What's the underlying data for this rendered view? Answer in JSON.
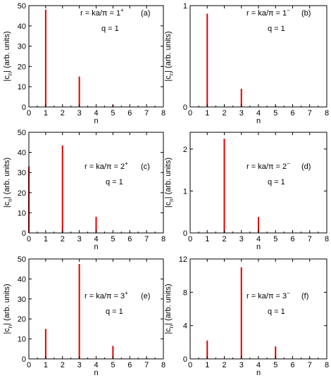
{
  "chart_data": [
    {
      "panel": "(a)",
      "type": "bar",
      "color": "#dd0000",
      "annotation": {
        "r": "r = ka/π = 1",
        "sup": "+",
        "q": "q = 1"
      },
      "xlabel": "n",
      "ylabel": "|c",
      "ylabel_sub": "n",
      "ylabel_tail": "| (arb. units)",
      "xlim": [
        0,
        8
      ],
      "ylim": [
        0,
        50
      ],
      "xticks": [
        "0",
        "1",
        "2",
        "3",
        "4",
        "5",
        "6",
        "7",
        "8"
      ],
      "yticks": [
        "0",
        "10",
        "20",
        "30",
        "40",
        "50"
      ],
      "x": [
        1,
        3,
        5,
        7
      ],
      "values": [
        48,
        15,
        1,
        0.2
      ]
    },
    {
      "panel": "(b)",
      "type": "bar",
      "color": "#dd0000",
      "annotation": {
        "r": "r = ka/π = 1",
        "sup": "−",
        "q": "q = 1"
      },
      "xlabel": "n",
      "ylabel": "|c",
      "ylabel_sub": "n",
      "ylabel_tail": "| (arb. units)",
      "xlim": [
        0,
        8
      ],
      "ylim": [
        0,
        1
      ],
      "xticks": [
        "0",
        "1",
        "2",
        "3",
        "4",
        "5",
        "6",
        "7",
        "8"
      ],
      "yticks": [
        "0",
        "1"
      ],
      "x": [
        1,
        3,
        5
      ],
      "values": [
        0.92,
        0.18,
        0.01
      ]
    },
    {
      "panel": "(c)",
      "type": "bar",
      "color": "#dd0000",
      "annotation": {
        "r": "r = ka/π = 2",
        "sup": "+",
        "q": "q = 1"
      },
      "xlabel": "n",
      "ylabel": "|c",
      "ylabel_sub": "n",
      "ylabel_tail": "| (arb. units)",
      "xlim": [
        0,
        8
      ],
      "ylim": [
        0,
        50
      ],
      "xticks": [
        "0",
        "1",
        "2",
        "3",
        "4",
        "5",
        "6",
        "7",
        "8"
      ],
      "yticks": [
        "0",
        "10",
        "20",
        "30",
        "40",
        "50"
      ],
      "x": [
        0,
        2,
        4,
        6
      ],
      "values": [
        33,
        43.5,
        8,
        0.3
      ]
    },
    {
      "panel": "(d)",
      "type": "bar",
      "color": "#dd0000",
      "annotation": {
        "r": "r = ka/π = 2",
        "sup": "−",
        "q": "q = 1"
      },
      "xlabel": "n",
      "ylabel": "|c",
      "ylabel_sub": "n",
      "ylabel_tail": "| (arb. units)",
      "xlim": [
        0,
        8
      ],
      "ylim": [
        0,
        2.4
      ],
      "xticks": [
        "0",
        "1",
        "2",
        "3",
        "4",
        "5",
        "6",
        "7",
        "8"
      ],
      "yticks": [
        "0",
        "1",
        "2"
      ],
      "x": [
        2,
        4
      ],
      "values": [
        2.25,
        0.38
      ]
    },
    {
      "panel": "(e)",
      "type": "bar",
      "color": "#dd0000",
      "annotation": {
        "r": "r = ka/π = 3",
        "sup": "+",
        "q": "q = 1"
      },
      "xlabel": "n",
      "ylabel": "|c",
      "ylabel_sub": "n",
      "ylabel_tail": "| (arb. units)",
      "xlim": [
        0,
        8
      ],
      "ylim": [
        0,
        50
      ],
      "xticks": [
        "0",
        "1",
        "2",
        "3",
        "4",
        "5",
        "6",
        "7",
        "8"
      ],
      "yticks": [
        "0",
        "10",
        "20",
        "30",
        "40",
        "50"
      ],
      "x": [
        1,
        3,
        5,
        7
      ],
      "values": [
        15,
        47.5,
        6.5,
        0.3
      ]
    },
    {
      "panel": "(f)",
      "type": "bar",
      "color": "#dd0000",
      "annotation": {
        "r": "r = ka/π = 3",
        "sup": "−",
        "q": "q = 1"
      },
      "xlabel": "n",
      "ylabel": "|c",
      "ylabel_sub": "n",
      "ylabel_tail": "| (arb. units)",
      "xlim": [
        0,
        8
      ],
      "ylim": [
        0,
        12
      ],
      "xticks": [
        "0",
        "1",
        "2",
        "3",
        "4",
        "5",
        "6",
        "7",
        "8"
      ],
      "yticks": [
        "0",
        "4",
        "8",
        "12"
      ],
      "x": [
        1,
        3,
        5,
        7
      ],
      "values": [
        2.2,
        11,
        1.5,
        0.1
      ]
    }
  ]
}
